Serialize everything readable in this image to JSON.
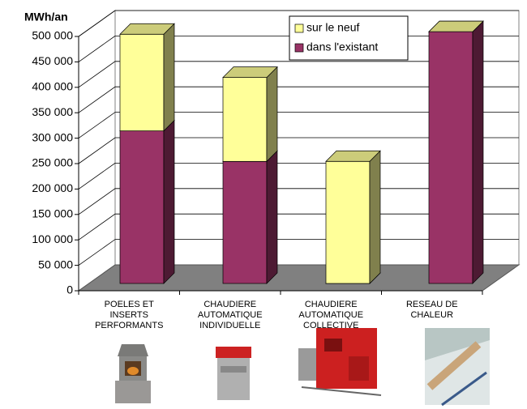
{
  "chart_data": {
    "type": "bar3d_stacked",
    "ylabel": "MWh/an",
    "categories": [
      "POELES ET\nINSERTS\nPERFORMANTS",
      "CHAUDIERE\nAUTOMATIQUE\nINDIVIDUELLE",
      "CHAUDIERE\nAUTOMATIQUE\nCOLLECTIVE",
      "RESEAU DE\nCHALEUR"
    ],
    "series": [
      {
        "name": "dans l'existant",
        "color": "#993366",
        "values": [
          300000,
          240000,
          0,
          495000
        ]
      },
      {
        "name": "sur le neuf",
        "color": "#ffff99",
        "values": [
          190000,
          165000,
          240000,
          0
        ]
      }
    ],
    "ylim": [
      0,
      500000
    ],
    "yticks": [
      0,
      {
        "value": 50000,
        "label": "50 000"
      },
      {
        "value": 100000,
        "label": "100 000"
      },
      {
        "value": 150000,
        "label": "150 000"
      },
      {
        "value": 200000,
        "label": "200 000"
      },
      {
        "value": 250000,
        "label": "250 000"
      },
      {
        "value": 300000,
        "label": "300 000"
      },
      {
        "value": 350000,
        "label": "350 000"
      },
      {
        "value": 400000,
        "label": "400 000"
      },
      {
        "value": 450000,
        "label": "450 000"
      },
      {
        "value": 500000,
        "label": "500 000"
      }
    ],
    "grid": true,
    "legend": "top-right"
  }
}
